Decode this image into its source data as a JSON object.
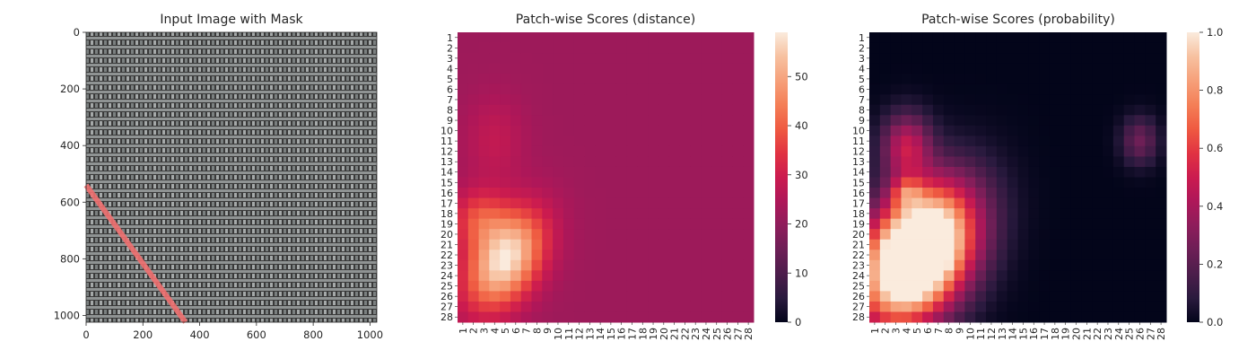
{
  "colors": {
    "background": "#ffffff",
    "text": "#262626",
    "mask_overlay": "#f07070",
    "fabric_dark": "#3a3a3a",
    "fabric_light": "#9a9e9e",
    "rocket_colormap": [
      "#03051a",
      "#2a1a3e",
      "#4c1d4b",
      "#6d1f56",
      "#8e1d5b",
      "#ae1759",
      "#cb1b4f",
      "#e13342",
      "#ef5a41",
      "#f47f57",
      "#f6a07a",
      "#f7c1a0",
      "#faebdd"
    ]
  },
  "chart_data": [
    {
      "type": "image",
      "title": "Input Image with Mask",
      "xlim": [
        0,
        1024
      ],
      "ylim": [
        1024,
        0
      ],
      "xticks": [
        0,
        200,
        400,
        600,
        800,
        1000
      ],
      "yticks": [
        0,
        200,
        400,
        600,
        800,
        1000
      ],
      "mask_line": {
        "from": [
          0,
          540
        ],
        "to": [
          350,
          1024
        ]
      }
    },
    {
      "type": "heatmap",
      "title": "Patch-wise Scores (distance)",
      "rows": [
        "1",
        "2",
        "3",
        "4",
        "5",
        "6",
        "7",
        "8",
        "9",
        "10",
        "11",
        "12",
        "13",
        "14",
        "15",
        "16",
        "17",
        "18",
        "19",
        "20",
        "21",
        "22",
        "23",
        "24",
        "25",
        "26",
        "27",
        "28"
      ],
      "cols": [
        "1",
        "2",
        "3",
        "4",
        "5",
        "6",
        "7",
        "8",
        "9",
        "10",
        "11",
        "12",
        "13",
        "14",
        "15",
        "16",
        "17",
        "18",
        "19",
        "20",
        "21",
        "22",
        "23",
        "24",
        "25",
        "26",
        "27",
        "28"
      ],
      "vmin": 0,
      "vmax": 59,
      "colorbar_ticks": [
        0,
        10,
        20,
        30,
        40,
        50
      ],
      "background_level": 22,
      "blobs": [
        {
          "row": 22.5,
          "col": 5,
          "rx": 2.2,
          "ry": 3.5,
          "rot": -0.5,
          "value": 37
        },
        {
          "row": 18.5,
          "col": 2.5,
          "rx": 1.8,
          "ry": 2,
          "rot": 0,
          "value": 14
        },
        {
          "row": 11,
          "col": 4,
          "rx": 2,
          "ry": 3,
          "rot": 0,
          "value": 6
        }
      ],
      "scale": "rocket"
    },
    {
      "type": "heatmap",
      "title": "Patch-wise Scores (probability)",
      "rows": [
        "1",
        "2",
        "3",
        "4",
        "5",
        "6",
        "7",
        "8",
        "9",
        "10",
        "11",
        "12",
        "13",
        "14",
        "15",
        "16",
        "17",
        "18",
        "19",
        "20",
        "21",
        "22",
        "23",
        "24",
        "25",
        "26",
        "27",
        "28"
      ],
      "cols": [
        "1",
        "2",
        "3",
        "4",
        "5",
        "6",
        "7",
        "8",
        "9",
        "10",
        "11",
        "12",
        "13",
        "14",
        "15",
        "16",
        "17",
        "18",
        "19",
        "20",
        "21",
        "22",
        "23",
        "24",
        "25",
        "26",
        "27",
        "28"
      ],
      "vmin": 0,
      "vmax": 1.0,
      "colorbar_ticks": [
        "0.0",
        "0.2",
        "0.4",
        "0.6",
        "0.8",
        "1.0"
      ],
      "background_level": 0,
      "blobs": [
        {
          "row": 22,
          "col": 5,
          "rx": 3.2,
          "ry": 4.8,
          "rot": -0.5,
          "value": 1.6
        },
        {
          "row": 11.5,
          "col": 4,
          "rx": 1.6,
          "ry": 2.2,
          "rot": 0,
          "value": 0.45
        },
        {
          "row": 11,
          "col": 26,
          "rx": 1.2,
          "ry": 1.6,
          "rot": 0,
          "value": 0.25
        },
        {
          "row": 16,
          "col": 4,
          "rx": 1,
          "ry": 1,
          "rot": 0,
          "value": 0.3
        }
      ],
      "scale": "rocket"
    }
  ]
}
